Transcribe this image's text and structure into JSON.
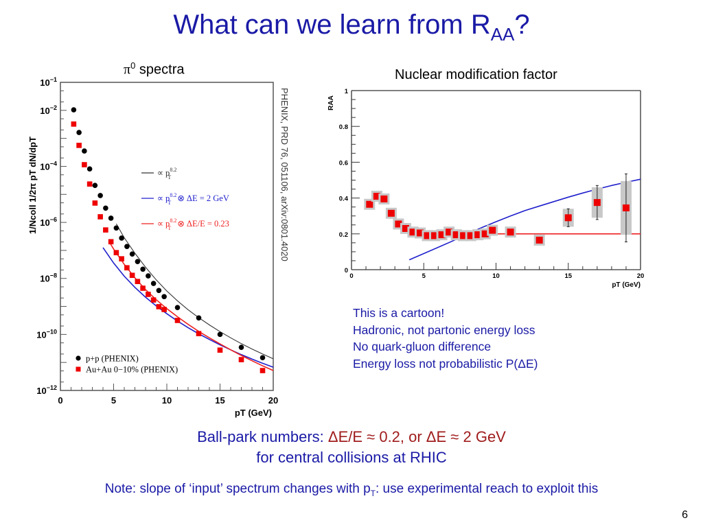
{
  "slide": {
    "title_main": "What can we learn from R",
    "title_sub": "AA",
    "title_end": "?",
    "page_number": "6"
  },
  "spectra": {
    "heading_symbol": "π",
    "heading_sup": "0",
    "heading_text": " spectra",
    "reference": "PHENIX, PRD 76, 051106, arXiv:0801.4020"
  },
  "raa": {
    "heading": "Nuclear modification factor"
  },
  "notes": [
    "This is a cartoon!",
    "Hadronic, not partonic energy loss",
    "No quark-gluon difference",
    "Energy loss not probabilistic P(ΔE)"
  ],
  "ballpark": {
    "prefix": "Ball-park numbers: ",
    "value": "ΔE/E ≈ 0.2, or ΔE ≈ 2 GeV",
    "line2": "for central collisions at RHIC"
  },
  "note_line": {
    "before": "Note: slope of ‘input’ spectrum changes with p",
    "sub": "T",
    "after": ": use experimental reach to exploit this"
  },
  "colors": {
    "title_blue": "#1a1aa6",
    "accent_red": "#a01c1c",
    "data_red": "#ee0000",
    "curve_blue": "#1f1fcc",
    "curve_red": "#ee2222"
  },
  "chart_data": [
    {
      "type": "scatter",
      "title": "π0 spectra",
      "xlabel": "p_T (GeV)",
      "ylabel": "1/N_coll 1/2π p_T dN/dp_T",
      "xlim": [
        0,
        20
      ],
      "ylim": [
        1e-12,
        0.1
      ],
      "yscale": "log",
      "x_ticks": [
        "0",
        "5",
        "10",
        "15",
        "20"
      ],
      "y_ticks": [
        {
          "base": "10",
          "exp": "−1",
          "value": -1
        },
        {
          "base": "10",
          "exp": "−2",
          "value": -2
        },
        {
          "base": "10",
          "exp": "−4",
          "value": -4
        },
        {
          "base": "10",
          "exp": "−6",
          "value": -6
        },
        {
          "base": "10",
          "exp": "−8",
          "value": -8
        },
        {
          "base": "10",
          "exp": "−10",
          "value": -10
        },
        {
          "base": "10",
          "exp": "−12",
          "value": -12
        }
      ],
      "x": [
        1.25,
        1.75,
        2.25,
        2.75,
        3.25,
        3.75,
        4.25,
        4.75,
        5.25,
        5.75,
        6.25,
        6.75,
        7.25,
        7.75,
        8.25,
        8.75,
        9.25,
        9.75,
        11,
        13,
        15,
        17,
        19
      ],
      "series": [
        {
          "name": "p+p (PHENIX)",
          "marker": "circle",
          "color": "#000000",
          "log10_values": [
            -1.98,
            -2.79,
            -3.45,
            -4.09,
            -4.68,
            -5.04,
            -5.49,
            -5.85,
            -6.2,
            -6.56,
            -6.86,
            -7.13,
            -7.4,
            -7.67,
            -7.91,
            -8.18,
            -8.43,
            -8.65,
            -9.04,
            -9.41,
            -10.0,
            -10.46,
            -10.83
          ]
        },
        {
          "name": "Au+Au 0−10% (PHENIX)",
          "marker": "square",
          "color": "#ee0000",
          "log10_values": [
            -2.49,
            -3.25,
            -3.94,
            -4.63,
            -5.31,
            -5.8,
            -6.27,
            -6.69,
            -7.08,
            -7.3,
            -7.62,
            -7.89,
            -8.11,
            -8.35,
            -8.57,
            -8.77,
            -9.01,
            -9.11,
            -9.5,
            -9.97,
            -10.56,
            -10.9,
            -11.29
          ]
        }
      ],
      "curves": [
        {
          "name": "pp-fit",
          "legend_pre": "∝ p",
          "legend_sup": "8.2",
          "legend_sub": "T",
          "legend_post": "",
          "color": "#333333",
          "x": [
            5.25,
            6,
            7,
            8,
            9,
            10,
            11,
            12,
            13,
            14,
            15,
            16,
            17,
            18,
            19,
            20
          ],
          "log10_values": [
            -6.05,
            -6.55,
            -7.1,
            -7.6,
            -8.05,
            -8.45,
            -8.8,
            -9.12,
            -9.4,
            -9.66,
            -9.9,
            -10.12,
            -10.33,
            -10.52,
            -10.7,
            -10.87
          ]
        },
        {
          "name": "dE-2GeV",
          "legend_pre": "∝ p",
          "legend_sup": "8.2",
          "legend_sub": "T",
          "legend_post": " ⊗ ΔE = 2 GeV",
          "color": "#1f1fcc",
          "x": [
            4,
            5,
            6,
            7,
            8,
            9,
            10,
            11,
            12,
            13,
            14,
            15,
            16,
            17,
            18,
            19,
            20
          ],
          "log10_values": [
            -6.9,
            -7.45,
            -7.92,
            -8.32,
            -8.67,
            -8.98,
            -9.26,
            -9.52,
            -9.76,
            -9.98,
            -10.18,
            -10.37,
            -10.55,
            -10.72,
            -10.88,
            -11.03,
            -11.17
          ]
        },
        {
          "name": "dE-over-E-0.23",
          "legend_pre": "∝ p",
          "legend_sup": "8.2",
          "legend_sub": "T",
          "legend_post": " ⊗ ΔE/E = 0.23",
          "color": "#ee2222",
          "x": [
            4.6,
            5,
            6,
            7,
            8,
            9,
            10,
            11,
            12,
            13,
            14,
            15,
            16,
            17,
            18,
            19,
            20
          ],
          "log10_values": [
            -6.7,
            -6.95,
            -7.5,
            -7.98,
            -8.4,
            -8.76,
            -9.08,
            -9.37,
            -9.64,
            -9.89,
            -10.12,
            -10.34,
            -10.55,
            -10.75,
            -10.94,
            -11.12,
            -11.29
          ]
        }
      ]
    },
    {
      "type": "scatter",
      "title": "Nuclear modification factor",
      "xlabel": "p_T (GeV)",
      "ylabel": "R_AA",
      "xlim": [
        0,
        20
      ],
      "ylim": [
        0,
        1
      ],
      "x_ticks": [
        "0",
        "5",
        "10",
        "15",
        "20"
      ],
      "y_ticks": [
        "0",
        "0.2",
        "0.4",
        "0.6",
        "0.8",
        "1"
      ],
      "x": [
        1.25,
        1.75,
        2.25,
        2.75,
        3.25,
        3.75,
        4.25,
        4.75,
        5.25,
        5.75,
        6.25,
        6.75,
        7.25,
        7.75,
        8.25,
        8.75,
        9.25,
        9.75,
        11,
        13,
        15,
        17,
        19
      ],
      "values": [
        0.365,
        0.41,
        0.395,
        0.315,
        0.255,
        0.23,
        0.21,
        0.205,
        0.19,
        0.19,
        0.195,
        0.21,
        0.195,
        0.19,
        0.19,
        0.195,
        0.2,
        0.22,
        0.21,
        0.165,
        0.29,
        0.375,
        0.345
      ],
      "stat_err": [
        0,
        0,
        0,
        0,
        0,
        0,
        0,
        0,
        0,
        0,
        0,
        0,
        0,
        0,
        0,
        0,
        0,
        0,
        0,
        0.01,
        0.05,
        0.095,
        0.19
      ],
      "sys_err": [
        0.03,
        0.03,
        0.03,
        0.03,
        0.03,
        0.025,
        0.025,
        0.025,
        0.02,
        0.02,
        0.02,
        0.02,
        0.02,
        0.02,
        0.02,
        0.02,
        0.02,
        0.025,
        0.025,
        0.02,
        0.05,
        0.085,
        0.15
      ],
      "curves": [
        {
          "name": "dE-2GeV",
          "color": "#1f1fcc",
          "x": [
            4,
            5,
            6,
            7,
            8,
            9,
            10,
            11,
            12,
            13,
            14,
            15,
            16,
            17,
            18,
            19,
            20
          ],
          "values": [
            0.055,
            0.09,
            0.125,
            0.16,
            0.198,
            0.235,
            0.268,
            0.3,
            0.33,
            0.355,
            0.38,
            0.405,
            0.428,
            0.45,
            0.47,
            0.488,
            0.505
          ]
        },
        {
          "name": "dE-over-E-0.2",
          "color": "#ee2222",
          "x": [
            10,
            20
          ],
          "values": [
            0.2,
            0.2
          ]
        }
      ]
    }
  ]
}
